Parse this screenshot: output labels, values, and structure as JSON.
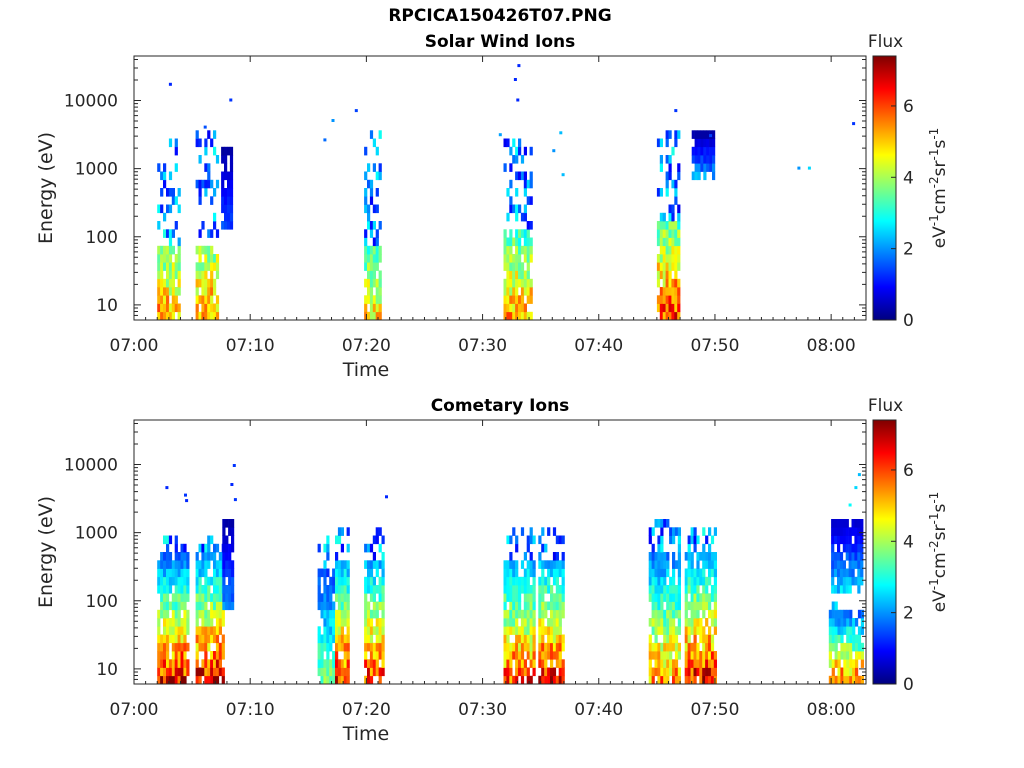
{
  "figure_title": "RPCICA150426T07.PNG",
  "colorscale": [
    "#00007f",
    "#0000ff",
    "#007fff",
    "#00ffff",
    "#7fff7f",
    "#ffff00",
    "#ff7f00",
    "#ff0000",
    "#7f0000"
  ],
  "chart_data": [
    {
      "type": "heatmap",
      "title": "Solar Wind Ions",
      "xlabel": "Time",
      "ylabel": "Energy (eV)",
      "x_ticks": [
        "07:00",
        "07:10",
        "07:20",
        "07:30",
        "07:40",
        "07:50",
        "08:00"
      ],
      "x_range_minutes": [
        0,
        63
      ],
      "y_scale": "log",
      "y_ticks": [
        {
          "value": 10,
          "label": "10"
        },
        {
          "value": 100,
          "label": "100"
        },
        {
          "value": 1000,
          "label": "1000"
        },
        {
          "value": 10000,
          "label": "10000"
        }
      ],
      "ylim": [
        6,
        45000
      ],
      "colorbar": {
        "title": "Flux",
        "label": "eV-1cm-2sr-1s-1",
        "ticks": [
          0,
          2,
          4,
          6
        ],
        "range": [
          0,
          7.4
        ]
      },
      "bursts": [
        {
          "t0": 2.0,
          "t1": 3.8,
          "e_lo": 6,
          "e_hi": 70,
          "peak": 5.8,
          "sparse_hi": 3000
        },
        {
          "t0": 5.3,
          "t1": 7.2,
          "e_lo": 6,
          "e_hi": 80,
          "peak": 6.0,
          "sparse_hi": 3500
        },
        {
          "t0": 7.5,
          "t1": 8.3,
          "e_lo": 150,
          "e_hi": 2000,
          "peak": 1.5,
          "sparse_hi": 2000
        },
        {
          "t0": 19.8,
          "t1": 21.3,
          "e_lo": 6,
          "e_hi": 80,
          "peak": 5.3,
          "sparse_hi": 4000
        },
        {
          "t0": 31.8,
          "t1": 34.2,
          "e_lo": 6,
          "e_hi": 120,
          "peak": 5.8,
          "sparse_hi": 3000
        },
        {
          "t0": 45.0,
          "t1": 46.9,
          "e_lo": 6,
          "e_hi": 150,
          "peak": 6.6,
          "sparse_hi": 3500
        },
        {
          "t0": 48.0,
          "t1": 49.8,
          "e_lo": 800,
          "e_hi": 3200,
          "peak": 2.2,
          "sparse_hi": 3200
        }
      ],
      "scatter_points": [
        {
          "t": 3.0,
          "e": 17000,
          "v": 1.2
        },
        {
          "t": 6.0,
          "e": 4000,
          "v": 1.5
        },
        {
          "t": 8.2,
          "e": 10000,
          "v": 1.3
        },
        {
          "t": 17.0,
          "e": 5000,
          "v": 2.0
        },
        {
          "t": 19.0,
          "e": 7000,
          "v": 1.4
        },
        {
          "t": 16.3,
          "e": 2600,
          "v": 1.7
        },
        {
          "t": 33.0,
          "e": 32000,
          "v": 1.2
        },
        {
          "t": 32.7,
          "e": 20000,
          "v": 1.2
        },
        {
          "t": 32.9,
          "e": 10000,
          "v": 1.2
        },
        {
          "t": 31.4,
          "e": 3100,
          "v": 2.1
        },
        {
          "t": 36.6,
          "e": 3300,
          "v": 2.3
        },
        {
          "t": 36.8,
          "e": 800,
          "v": 2.3
        },
        {
          "t": 36.0,
          "e": 1800,
          "v": 2.0
        },
        {
          "t": 46.5,
          "e": 7000,
          "v": 1.3
        },
        {
          "t": 49.5,
          "e": 3000,
          "v": 1.4
        },
        {
          "t": 57.1,
          "e": 1000,
          "v": 2.0
        },
        {
          "t": 61.8,
          "e": 4500,
          "v": 1.3
        },
        {
          "t": 58.0,
          "e": 1000,
          "v": 2.5
        }
      ]
    },
    {
      "type": "heatmap",
      "title": "Cometary Ions",
      "xlabel": "Time",
      "ylabel": "Energy (eV)",
      "x_ticks": [
        "07:00",
        "07:10",
        "07:20",
        "07:30",
        "07:40",
        "07:50",
        "08:00"
      ],
      "x_range_minutes": [
        0,
        63
      ],
      "y_scale": "log",
      "y_ticks": [
        {
          "value": 10,
          "label": "10"
        },
        {
          "value": 100,
          "label": "100"
        },
        {
          "value": 1000,
          "label": "1000"
        },
        {
          "value": 10000,
          "label": "10000"
        }
      ],
      "ylim": [
        6,
        45000
      ],
      "colorbar": {
        "title": "Flux",
        "label": "eV-1cm-2sr-1s-1",
        "ticks": [
          0,
          2,
          4,
          6
        ],
        "range": [
          0,
          7.4
        ]
      },
      "bursts": [
        {
          "t0": 2.0,
          "t1": 4.6,
          "e_lo": 6,
          "e_hi": 500,
          "peak": 7.2,
          "sparse_hi": 800
        },
        {
          "t0": 5.3,
          "t1": 7.6,
          "e_lo": 6,
          "e_hi": 500,
          "peak": 7.2,
          "sparse_hi": 1000
        },
        {
          "t0": 7.6,
          "t1": 8.4,
          "e_lo": 80,
          "e_hi": 1500,
          "peak": 2.0,
          "sparse_hi": 1500
        },
        {
          "t0": 15.8,
          "t1": 17.3,
          "e_lo": 6,
          "e_hi": 300,
          "peak": 4.0,
          "sparse_hi": 1000
        },
        {
          "t0": 17.3,
          "t1": 18.5,
          "e_lo": 6,
          "e_hi": 350,
          "peak": 6.8,
          "sparse_hi": 1200
        },
        {
          "t0": 19.8,
          "t1": 21.5,
          "e_lo": 6,
          "e_hi": 400,
          "peak": 6.8,
          "sparse_hi": 1200
        },
        {
          "t0": 31.8,
          "t1": 34.4,
          "e_lo": 6,
          "e_hi": 400,
          "peak": 6.6,
          "sparse_hi": 1200
        },
        {
          "t0": 34.8,
          "t1": 37.0,
          "e_lo": 6,
          "e_hi": 400,
          "peak": 7.0,
          "sparse_hi": 1200
        },
        {
          "t0": 44.3,
          "t1": 47.0,
          "e_lo": 6,
          "e_hi": 500,
          "peak": 6.0,
          "sparse_hi": 1400
        },
        {
          "t0": 47.4,
          "t1": 50.0,
          "e_lo": 6,
          "e_hi": 500,
          "peak": 7.2,
          "sparse_hi": 1300
        },
        {
          "t0": 59.8,
          "t1": 62.6,
          "e_lo": 6,
          "e_hi": 80,
          "peak": 6.3,
          "sparse_hi": 100
        },
        {
          "t0": 60.0,
          "t1": 62.6,
          "e_lo": 150,
          "e_hi": 1800,
          "peak": 2.6,
          "sparse_hi": 1800
        }
      ],
      "scatter_points": [
        {
          "t": 2.7,
          "e": 4500,
          "v": 1.2
        },
        {
          "t": 4.3,
          "e": 3500,
          "v": 1.3
        },
        {
          "t": 4.4,
          "e": 2900,
          "v": 1.2
        },
        {
          "t": 8.5,
          "e": 9500,
          "v": 1.3
        },
        {
          "t": 8.3,
          "e": 5000,
          "v": 1.2
        },
        {
          "t": 8.6,
          "e": 3000,
          "v": 1.3
        },
        {
          "t": 21.6,
          "e": 3300,
          "v": 1.2
        },
        {
          "t": 62.3,
          "e": 7000,
          "v": 2.3
        },
        {
          "t": 62.0,
          "e": 4500,
          "v": 2.5
        },
        {
          "t": 61.5,
          "e": 2500,
          "v": 2.8
        }
      ]
    }
  ]
}
